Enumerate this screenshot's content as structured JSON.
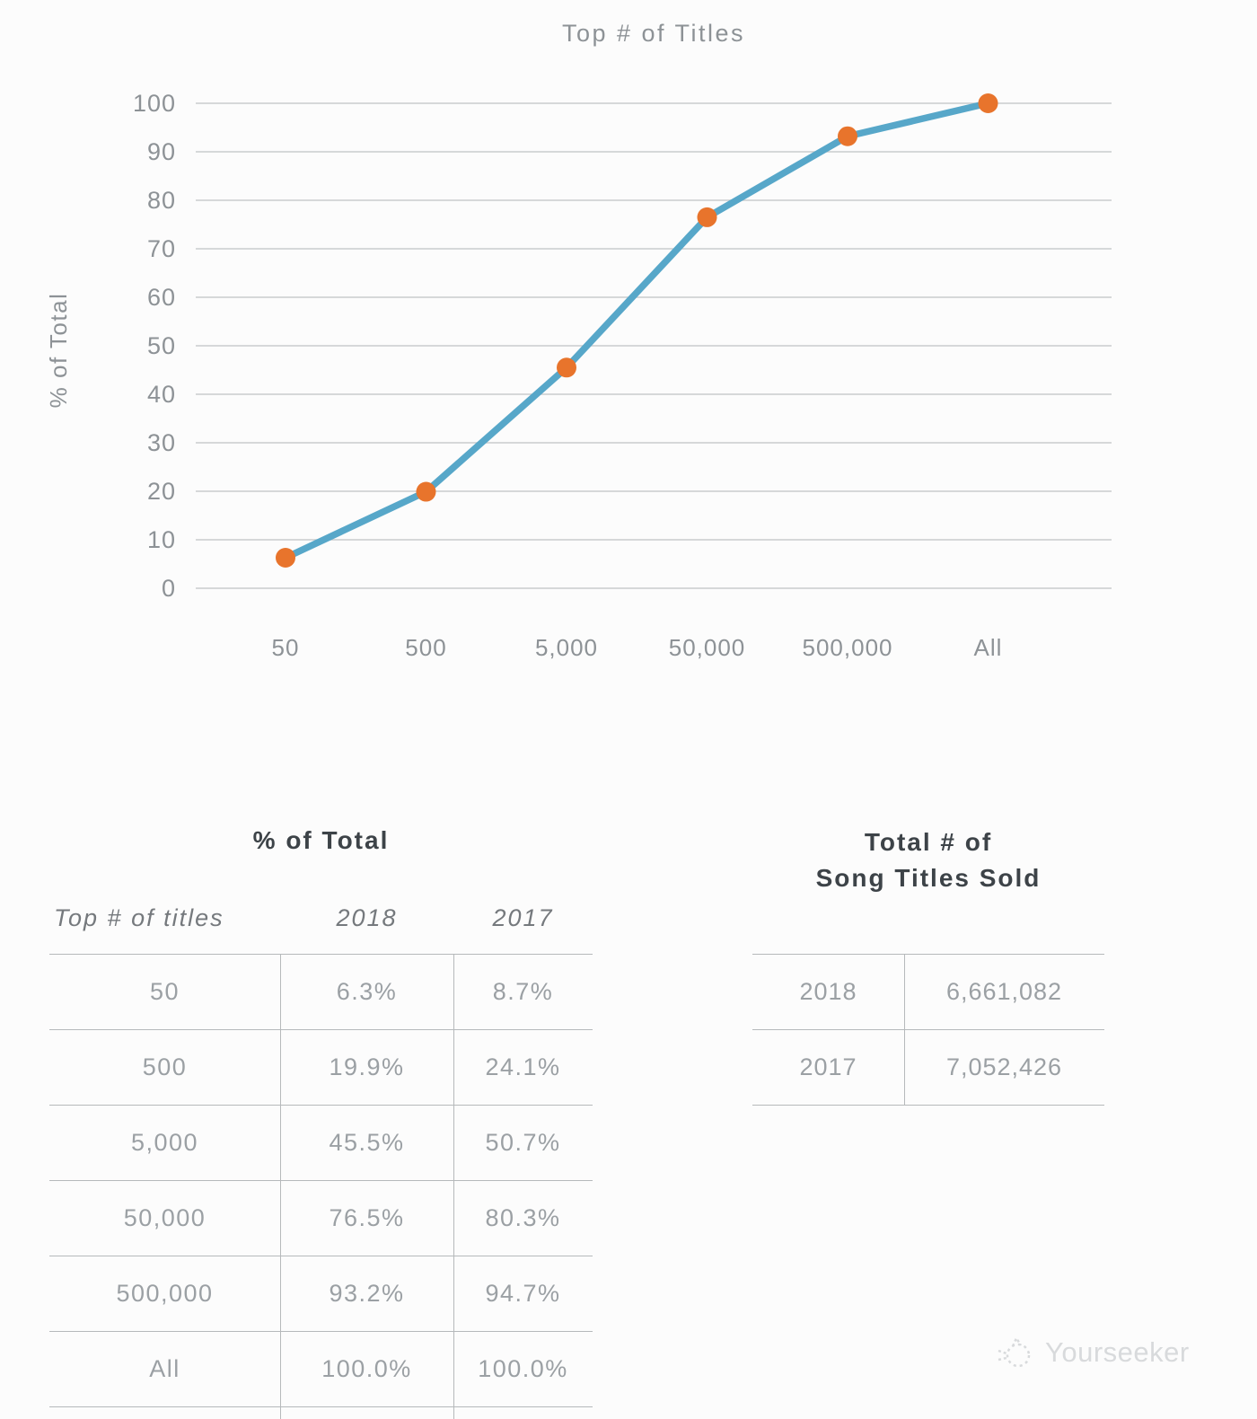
{
  "chart_data": {
    "type": "line",
    "title": "Top # of Titles",
    "ylabel": "% of Total",
    "categories": [
      "50",
      "500",
      "5,000",
      "50,000",
      "500,000",
      "All"
    ],
    "series": [
      {
        "name": "2018",
        "values": [
          6.3,
          19.9,
          45.5,
          76.5,
          93.2,
          100.0
        ]
      }
    ],
    "ylim": [
      0,
      100
    ],
    "ytick_step": 10,
    "grid": true,
    "legend_position": "none",
    "line_color": "#57a7c9",
    "marker_color": "#e8742c",
    "grid_color": "#c9cbcd",
    "tick_color": "#8d9296"
  },
  "pct_table": {
    "title": "% of Total",
    "headers": [
      "Top # of titles",
      "2018",
      "2017"
    ],
    "rows": [
      [
        "50",
        "6.3%",
        "8.7%"
      ],
      [
        "500",
        "19.9%",
        "24.1%"
      ],
      [
        "5,000",
        "45.5%",
        "50.7%"
      ],
      [
        "50,000",
        "76.5%",
        "80.3%"
      ],
      [
        "500,000",
        "93.2%",
        "94.7%"
      ],
      [
        "All",
        "100.0%",
        "100.0%"
      ]
    ]
  },
  "totals_table": {
    "title_line1": "Total # of",
    "title_line2": "Song Titles Sold",
    "rows": [
      [
        "2018",
        "6,661,082"
      ],
      [
        "2017",
        "7,052,426"
      ]
    ]
  },
  "watermark": {
    "label": "Yourseeker"
  }
}
